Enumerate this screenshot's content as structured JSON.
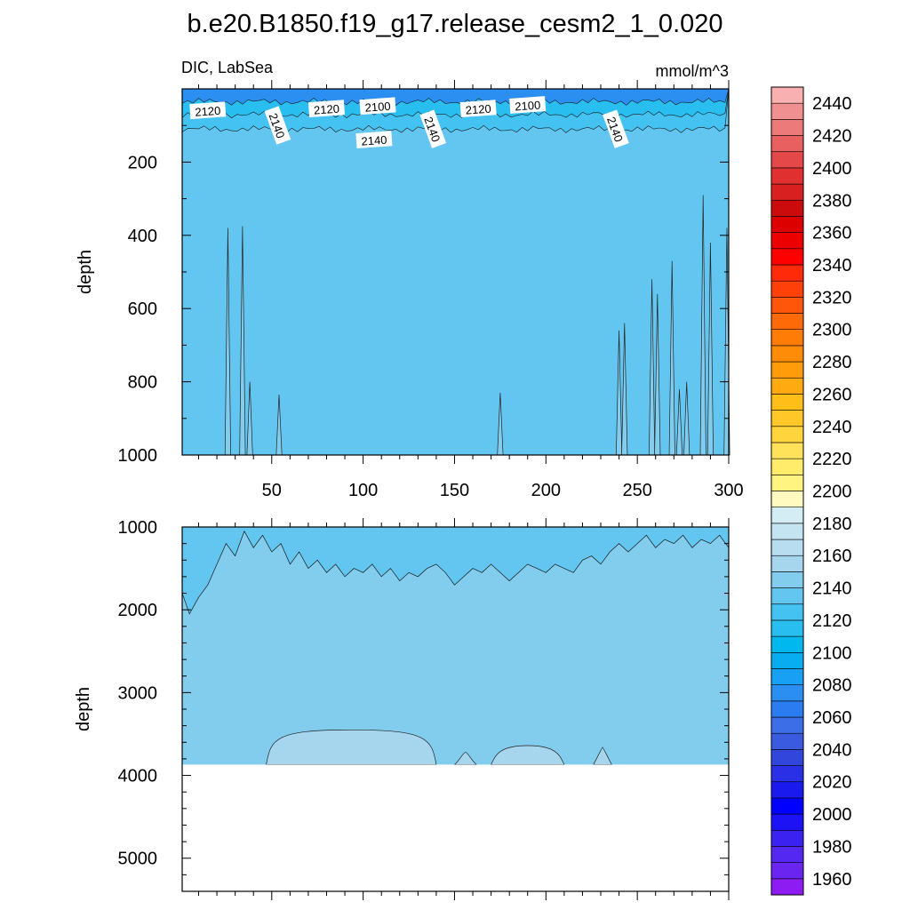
{
  "chart_data": {
    "type": "heatmap",
    "title": "b.e20.B1850.f19_g17.release_cesm2_1_0.020",
    "variable": "DIC, LabSea",
    "units": "mmol/m^3",
    "ylabel": "depth",
    "xlabel": "",
    "xlim": [
      1,
      300
    ],
    "x_ticks": [
      50,
      100,
      150,
      200,
      250,
      300
    ],
    "panels": [
      {
        "name": "upper",
        "ylim": [
          0,
          1000
        ],
        "y_ticks": [
          200,
          400,
          600,
          800,
          1000
        ],
        "layers_mmol_per_m3": [
          {
            "range": "2140-2150",
            "depth_from": 110,
            "depth_to": 1000
          },
          {
            "range": "2120-2140",
            "depth_from": 70,
            "depth_to": 110
          },
          {
            "range": "2100-2120",
            "depth_from": 35,
            "depth_to": 70
          },
          {
            "range": "2080-2100",
            "depth_from": 0,
            "depth_to": 35
          }
        ],
        "contour_labels": [
          {
            "value": "2120",
            "x": 15,
            "depth": 60
          },
          {
            "value": "2140",
            "x": 53,
            "depth": 100
          },
          {
            "value": "2120",
            "x": 80,
            "depth": 55
          },
          {
            "value": "2100",
            "x": 108,
            "depth": 48
          },
          {
            "value": "2140",
            "x": 106,
            "depth": 140
          },
          {
            "value": "2140",
            "x": 138,
            "depth": 110
          },
          {
            "value": "2120",
            "x": 163,
            "depth": 55
          },
          {
            "value": "2100",
            "x": 190,
            "depth": 45
          },
          {
            "value": "2140",
            "x": 238,
            "depth": 110
          }
        ],
        "deep_spikes_2150": [
          {
            "x": 26,
            "top_depth": 380
          },
          {
            "x": 34,
            "top_depth": 375
          },
          {
            "x": 38,
            "top_depth": 800
          },
          {
            "x": 54,
            "top_depth": 835
          },
          {
            "x": 175,
            "top_depth": 830
          },
          {
            "x": 240,
            "top_depth": 660
          },
          {
            "x": 243,
            "top_depth": 640
          },
          {
            "x": 258,
            "top_depth": 520
          },
          {
            "x": 261,
            "top_depth": 560
          },
          {
            "x": 269,
            "top_depth": 470
          },
          {
            "x": 273,
            "top_depth": 820
          },
          {
            "x": 277,
            "top_depth": 800
          },
          {
            "x": 286,
            "top_depth": 290
          },
          {
            "x": 290,
            "top_depth": 420
          },
          {
            "x": 299,
            "top_depth": 380
          }
        ]
      },
      {
        "name": "lower",
        "ylim": [
          1000,
          5400
        ],
        "y_ticks": [
          1000,
          2000,
          3000,
          4000,
          5000
        ],
        "bottom_depth": 3870,
        "layers_mmol_per_m3": [
          {
            "range": "2140-2150",
            "depth_from": 1000,
            "depth_to": 1550
          },
          {
            "range": "2150-2160",
            "depth_from": 1550,
            "depth_to": 3870
          },
          {
            "range": "2160-2170",
            "depth_from": 3480,
            "depth_to": 3870,
            "note": "patches near bottom"
          }
        ],
        "boundary_2150": [
          [
            1,
            1800
          ],
          [
            5,
            2050
          ],
          [
            10,
            1850
          ],
          [
            15,
            1700
          ],
          [
            20,
            1450
          ],
          [
            25,
            1200
          ],
          [
            30,
            1350
          ],
          [
            35,
            1050
          ],
          [
            40,
            1250
          ],
          [
            45,
            1100
          ],
          [
            50,
            1300
          ],
          [
            55,
            1200
          ],
          [
            60,
            1450
          ],
          [
            65,
            1300
          ],
          [
            70,
            1500
          ],
          [
            75,
            1400
          ],
          [
            80,
            1550
          ],
          [
            85,
            1450
          ],
          [
            90,
            1600
          ],
          [
            95,
            1500
          ],
          [
            100,
            1550
          ],
          [
            105,
            1450
          ],
          [
            110,
            1600
          ],
          [
            115,
            1500
          ],
          [
            120,
            1650
          ],
          [
            125,
            1550
          ],
          [
            130,
            1600
          ],
          [
            135,
            1500
          ],
          [
            140,
            1450
          ],
          [
            145,
            1550
          ],
          [
            150,
            1700
          ],
          [
            155,
            1600
          ],
          [
            160,
            1500
          ],
          [
            165,
            1550
          ],
          [
            170,
            1450
          ],
          [
            175,
            1550
          ],
          [
            180,
            1650
          ],
          [
            185,
            1550
          ],
          [
            190,
            1450
          ],
          [
            195,
            1500
          ],
          [
            200,
            1550
          ],
          [
            205,
            1450
          ],
          [
            210,
            1500
          ],
          [
            215,
            1550
          ],
          [
            220,
            1400
          ],
          [
            225,
            1350
          ],
          [
            230,
            1450
          ],
          [
            235,
            1300
          ],
          [
            240,
            1200
          ],
          [
            245,
            1300
          ],
          [
            250,
            1200
          ],
          [
            255,
            1100
          ],
          [
            260,
            1250
          ],
          [
            265,
            1150
          ],
          [
            270,
            1200
          ],
          [
            275,
            1100
          ],
          [
            280,
            1250
          ],
          [
            285,
            1150
          ],
          [
            290,
            1200
          ],
          [
            295,
            1100
          ],
          [
            300,
            1250
          ]
        ],
        "patches_2160": [
          {
            "x_from": 47,
            "x_to": 140,
            "top_depth": 3450
          },
          {
            "x_from": 150,
            "x_to": 162,
            "top_depth": 3720
          },
          {
            "x_from": 170,
            "x_to": 210,
            "top_depth": 3640
          },
          {
            "x_from": 226,
            "x_to": 236,
            "top_depth": 3660
          }
        ]
      }
    ],
    "colorbar": {
      "min": 1950,
      "max": 2450,
      "step": 10,
      "labels": [
        "2440",
        "2420",
        "2400",
        "2380",
        "2360",
        "2340",
        "2320",
        "2300",
        "2280",
        "2260",
        "2240",
        "2220",
        "2200",
        "2180",
        "2160",
        "2140",
        "2120",
        "2100",
        "2080",
        "2060",
        "2040",
        "2020",
        "2000",
        "1980",
        "1960"
      ],
      "colors": [
        "#8c1cf2",
        "#6a25f0",
        "#5428f0",
        "#3b22f0",
        "#1c12f5",
        "#0000ff",
        "#1a1aee",
        "#2a30e6",
        "#3246dc",
        "#3a5ae0",
        "#3c6ee8",
        "#2a7cf0",
        "#2a8ff0",
        "#18a0f4",
        "#08acf0",
        "#00b8ee",
        "#28bef0",
        "#44c2f2",
        "#62c6f0",
        "#82ccee",
        "#a6d6ee",
        "#b8dcf0",
        "#c4e4f2",
        "#d4ecf4",
        "#fffac0",
        "#fff480",
        "#ffec6a",
        "#ffe25a",
        "#ffd43c",
        "#ffc828",
        "#ffbe18",
        "#ffaa10",
        "#ff9c0a",
        "#ff8c08",
        "#ff7c06",
        "#ff6a08",
        "#ff560a",
        "#ff4008",
        "#ff2a08",
        "#ff0000",
        "#ec0000",
        "#dc0000",
        "#cc0c0c",
        "#d82020",
        "#e03030",
        "#e44848",
        "#e86060",
        "#ec7a7a",
        "#f09090",
        "#f8b0b0"
      ]
    }
  }
}
